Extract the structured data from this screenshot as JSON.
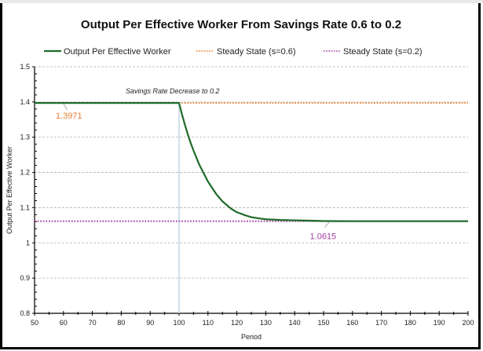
{
  "chart_data": {
    "type": "line",
    "title": "Output Per Effective Worker From Savings Rate 0.6 to 0.2",
    "xlabel": "Period",
    "ylabel": "Output Per Effective Worker",
    "xlim": [
      50,
      200
    ],
    "ylim": [
      0.8,
      1.5
    ],
    "xticks": [
      50,
      60,
      70,
      80,
      90,
      100,
      110,
      120,
      130,
      140,
      150,
      160,
      170,
      180,
      190,
      200
    ],
    "yticks": [
      0.8,
      0.9,
      1,
      1.1,
      1.2,
      1.3,
      1.4,
      1.5
    ],
    "ytick_labels": [
      "0.8",
      "0.9",
      "1",
      "1.1",
      "1.2",
      "1.3",
      "1.4",
      "1.5"
    ],
    "grid": "horizontal",
    "legend_position": "top",
    "series": [
      {
        "name": "Output Per Effective Worker",
        "style": "solid",
        "color": "#1e6b2a",
        "x": [
          50,
          60,
          70,
          80,
          90,
          100,
          101,
          102,
          103,
          104,
          105,
          107,
          110,
          113,
          115,
          118,
          120,
          123,
          125,
          128,
          130,
          135,
          140,
          145,
          150,
          155,
          160,
          170,
          180,
          190,
          200
        ],
        "y": [
          1.3971,
          1.3971,
          1.3971,
          1.3971,
          1.3971,
          1.3971,
          1.365,
          1.336,
          1.309,
          1.284,
          1.262,
          1.222,
          1.174,
          1.137,
          1.118,
          1.097,
          1.087,
          1.078,
          1.073,
          1.069,
          1.067,
          1.065,
          1.064,
          1.063,
          1.062,
          1.0617,
          1.0615,
          1.0615,
          1.0615,
          1.0615,
          1.0615
        ]
      },
      {
        "name": "Steady State (s=0.6)",
        "style": "dotted",
        "color": "#ed7d31",
        "value": 1.3971
      },
      {
        "name": "Steady State (s=0.2)",
        "style": "dotted",
        "color": "#a040a0",
        "value": 1.0615
      }
    ],
    "annotations": [
      {
        "text": "Savings Rate Decrease to 0.2",
        "type": "vertical-line",
        "x": 100,
        "color": "#bdd7e7"
      },
      {
        "text": "1.3971",
        "type": "data-label",
        "x": 60,
        "y": 1.3971,
        "color": "#ed7d31"
      },
      {
        "text": "1.0615",
        "type": "data-label",
        "x": 152,
        "y": 1.0615,
        "color": "#a040a0"
      }
    ]
  }
}
